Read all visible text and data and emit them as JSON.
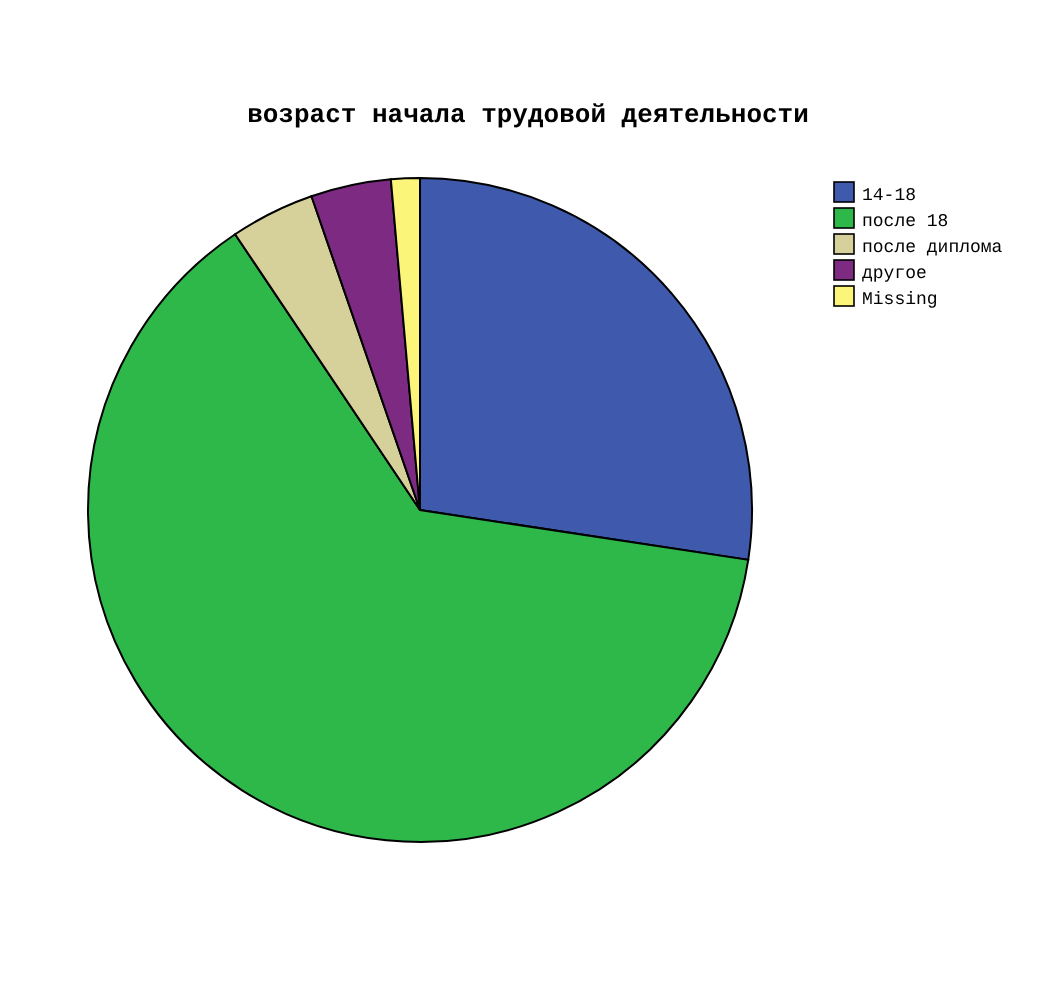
{
  "chart_data": {
    "type": "pie",
    "title": "возраст начала трудовой деятельности",
    "categories": [
      "14-18",
      "после 18",
      "после диплома",
      "другое",
      "Missing"
    ],
    "values": [
      27.4,
      63.2,
      4.1,
      3.9,
      1.4
    ],
    "colors": [
      "#3f5aad",
      "#2fb84a",
      "#d6d09a",
      "#7d2a82",
      "#fbf57a"
    ],
    "legend": "top right"
  }
}
